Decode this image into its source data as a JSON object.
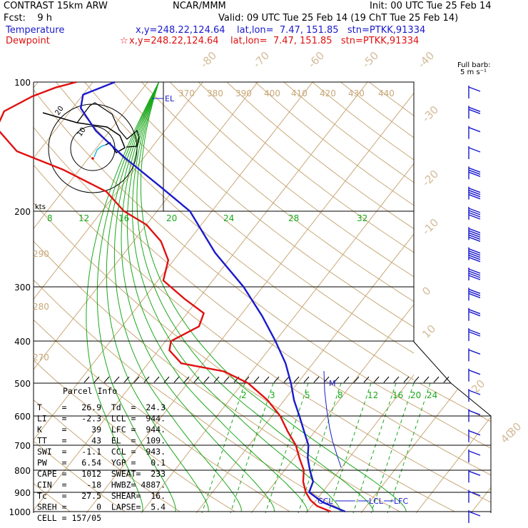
{
  "header": {
    "model": "CONTRAST 15km ARW",
    "center": "NCAR/MMM",
    "init": "Init: 00 UTC Tue 25 Feb 14",
    "fcst": "Fcst:    9 h",
    "valid": "Valid: 09 UTC Tue 25 Feb 14 (19 ChT Tue 25 Feb 14)",
    "temperature_label": "Temperature",
    "temperature_info": "x,y=248.22,124.64    lat,lon=  7.47, 151.85   stn=PTKK,91334",
    "dewpoint_label": "Dewpoint",
    "dewpoint_info": "x,y=248.22,124.64    lat,lon=  7.47, 151.85   stn=PTKK,91334",
    "dewpoint_marker": "☆",
    "barb_key_line1": "Full barb:",
    "barb_key_line2": "5 m s⁻¹"
  },
  "colors": {
    "temperature": "#1a1acc",
    "dewpoint": "#e01010",
    "isotherm": "#c8a878",
    "mixing_ratio": "#1aa81a",
    "isobar": "#000000"
  },
  "chart_data": {
    "type": "line",
    "title": "",
    "y_scale": "log pressure",
    "ylabel_units": "hPa",
    "pressure_levels": [
      "100",
      "200",
      "300",
      "400",
      "500",
      "600",
      "700",
      "800",
      "900",
      "1000"
    ],
    "temperature_ticks": [
      "-80",
      "-70",
      "-60",
      "-50",
      "-40",
      "-30",
      "-20",
      "-10",
      "0",
      "10",
      "20",
      "30",
      "40"
    ],
    "theta_labels": [
      "370",
      "380",
      "390",
      "400",
      "410",
      "420",
      "430",
      "440",
      "290",
      "280",
      "270"
    ],
    "mixing_ratio_labels_upper": [
      "8",
      "12",
      "16",
      "20",
      "24",
      "28",
      "32"
    ],
    "mixing_ratio_labels_lower": [
      "2",
      "3",
      "5",
      "8",
      "12",
      "16",
      "20",
      "24"
    ],
    "series": [
      {
        "name": "Temperature",
        "color": "#1a1acc",
        "points": [
          {
            "p": 1000,
            "t": 26.9
          },
          {
            "p": 950,
            "t": 21.5
          },
          {
            "p": 900,
            "t": 17.6
          },
          {
            "p": 850,
            "t": 16.8
          },
          {
            "p": 800,
            "t": 14.6
          },
          {
            "p": 750,
            "t": 12.5
          },
          {
            "p": 700,
            "t": 10.8
          },
          {
            "p": 650,
            "t": 8.0
          },
          {
            "p": 600,
            "t": 5.0
          },
          {
            "p": 550,
            "t": 1.8
          },
          {
            "p": 500,
            "t": -1.2
          },
          {
            "p": 450,
            "t": -5.0
          },
          {
            "p": 400,
            "t": -10.0
          },
          {
            "p": 350,
            "t": -16.0
          },
          {
            "p": 300,
            "t": -23.5
          },
          {
            "p": 250,
            "t": -33.5
          },
          {
            "p": 200,
            "t": -44.0
          },
          {
            "p": 175,
            "t": -53.0
          },
          {
            "p": 150,
            "t": -63.5
          },
          {
            "p": 130,
            "t": -72.5
          },
          {
            "p": 115,
            "t": -78.5
          },
          {
            "p": 107,
            "t": -80.0
          },
          {
            "p": 100,
            "t": -76.0
          }
        ]
      },
      {
        "name": "Dewpoint",
        "color": "#e01010",
        "points": [
          {
            "p": 1000,
            "t": 24.3
          },
          {
            "p": 970,
            "t": 21.0
          },
          {
            "p": 940,
            "t": 19.0
          },
          {
            "p": 900,
            "t": 17.0
          },
          {
            "p": 850,
            "t": 15.0
          },
          {
            "p": 800,
            "t": 13.5
          },
          {
            "p": 750,
            "t": 11.0
          },
          {
            "p": 700,
            "t": 8.5
          },
          {
            "p": 650,
            "t": 5.0
          },
          {
            "p": 600,
            "t": 1.5
          },
          {
            "p": 550,
            "t": -3.0
          },
          {
            "p": 500,
            "t": -9.0
          },
          {
            "p": 470,
            "t": -15.0
          },
          {
            "p": 450,
            "t": -24.0
          },
          {
            "p": 420,
            "t": -28.0
          },
          {
            "p": 400,
            "t": -29.0
          },
          {
            "p": 370,
            "t": -26.0
          },
          {
            "p": 345,
            "t": -27.0
          },
          {
            "p": 320,
            "t": -32.5
          },
          {
            "p": 290,
            "t": -39.0
          },
          {
            "p": 260,
            "t": -41.0
          },
          {
            "p": 235,
            "t": -45.0
          },
          {
            "p": 215,
            "t": -50.0
          },
          {
            "p": 200,
            "t": -56.0
          },
          {
            "p": 180,
            "t": -62.0
          },
          {
            "p": 160,
            "t": -73.0
          },
          {
            "p": 145,
            "t": -84.0
          },
          {
            "p": 128,
            "t": -91.0
          },
          {
            "p": 117,
            "t": -92.0
          },
          {
            "p": 108,
            "t": -89.0
          },
          {
            "p": 103,
            "t": -86.0
          },
          {
            "p": 100,
            "t": -83.0
          }
        ]
      }
    ],
    "annotations": [
      "EL",
      "LCL",
      "LFC",
      "CCL",
      "M"
    ],
    "wind_barb_speeds_ms": [
      5,
      10,
      5,
      5,
      15,
      20,
      20,
      25,
      25,
      20,
      15,
      10,
      10,
      5,
      5,
      5,
      5,
      5,
      5,
      5,
      5,
      5
    ],
    "hodograph": {
      "label": "kts",
      "ring_labels": [
        "10",
        "20"
      ]
    }
  },
  "parcel_info": {
    "title": "Parcel Info",
    "rows": [
      "T    =   26.9  Td  =  24.3",
      "LI   =   -2.3  LCL =  944.",
      "K    =     39  LFC =  944.",
      "TT   =     43  EL  =  109.",
      "SWI  =   -1.1  CCL =  943.",
      "PW   =   6.54  YGP =   0.1",
      "CAPE =   1012  SWEAT=  233",
      "CIN  =    -18  HWBZ= 4887.",
      "Tc   =   27.5  SHEAR=  16.",
      "SREH =      0  LAPSE=  5.4",
      "CELL = 157/05"
    ]
  }
}
